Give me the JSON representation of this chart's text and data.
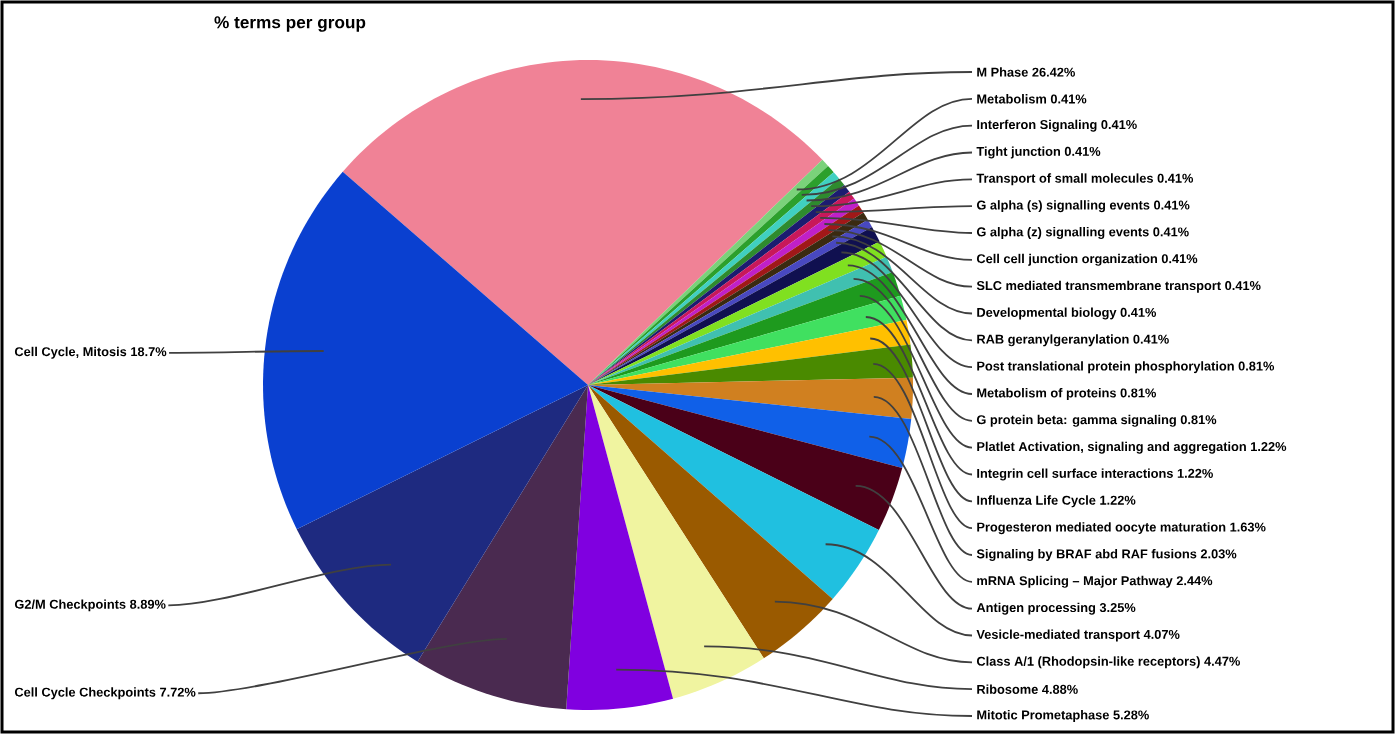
{
  "chart_data": {
    "type": "pie",
    "title": "% terms per group",
    "categories": [
      "M Phase",
      "Metabolism",
      "Interferon Signaling",
      "Tight junction",
      "Transport of small molecules",
      "G alpha (s) signalling events",
      "G alpha (z) signalling events",
      "Cell cell junction organization",
      "SLC mediated transmembrane transport",
      "Developmental biology",
      "RAB geranylgeranylation",
      "Post translational protein phosphorylation",
      "Metabolism of proteins",
      "G protein beta: gamma signaling",
      "Platlet Activation, signaling and aggregation",
      "Integrin cell surface interactions",
      "Influenza Life Cycle",
      "Progesteron mediated oocyte maturation",
      "Signaling by BRAF abd RAF fusions",
      "mRNA Splicing – Major Pathway",
      "Antigen processing",
      "Vesicle-mediated transport",
      "Class A/1 (Rhodopsin-like receptors)",
      "Ribosome",
      "Mitotic Prometaphase",
      "Cell Cycle Checkpoints",
      "G2/M Checkpoints",
      "Cell Cycle, Mitosis"
    ],
    "values": [
      26.42,
      0.41,
      0.41,
      0.41,
      0.41,
      0.41,
      0.41,
      0.41,
      0.41,
      0.41,
      0.41,
      0.81,
      0.81,
      0.81,
      1.22,
      1.22,
      1.22,
      1.63,
      2.03,
      2.44,
      3.25,
      4.07,
      4.47,
      4.88,
      5.28,
      7.72,
      8.89,
      18.7
    ],
    "colors": [
      "#f08296",
      "#7ad27a",
      "#2ca02c",
      "#40d0c0",
      "#2e8b2e",
      "#1c1c70",
      "#c8185a",
      "#c020c8",
      "#a01818",
      "#3a2a10",
      "#4848c0",
      "#101050",
      "#80e020",
      "#40c0b0",
      "#1e9a1e",
      "#40e060",
      "#ffc000",
      "#4a8a00",
      "#d08020",
      "#1060e8",
      "#4a0018",
      "#20c0e0",
      "#9a5a00",
      "#f0f4a0",
      "#8000e0",
      "#4a2a50",
      "#1e2a80",
      "#0a40d0"
    ],
    "value_labels": [
      "26.42%",
      "0.41%",
      "0.41%",
      "0.41%",
      "0.41%",
      "0.41%",
      "0.41%",
      "0.41%",
      "0.41%",
      "0.41%",
      "0.41%",
      "0.81%",
      "0.81%",
      "0.81%",
      "1.22%",
      "1.22%",
      "1.22%",
      "1.63%",
      "2.03%",
      "2.44%",
      "3.25%",
      "4.07%",
      "4.47%",
      "4.88%",
      "5.28%",
      "7.72%",
      "8.89%",
      "18.7%"
    ]
  }
}
